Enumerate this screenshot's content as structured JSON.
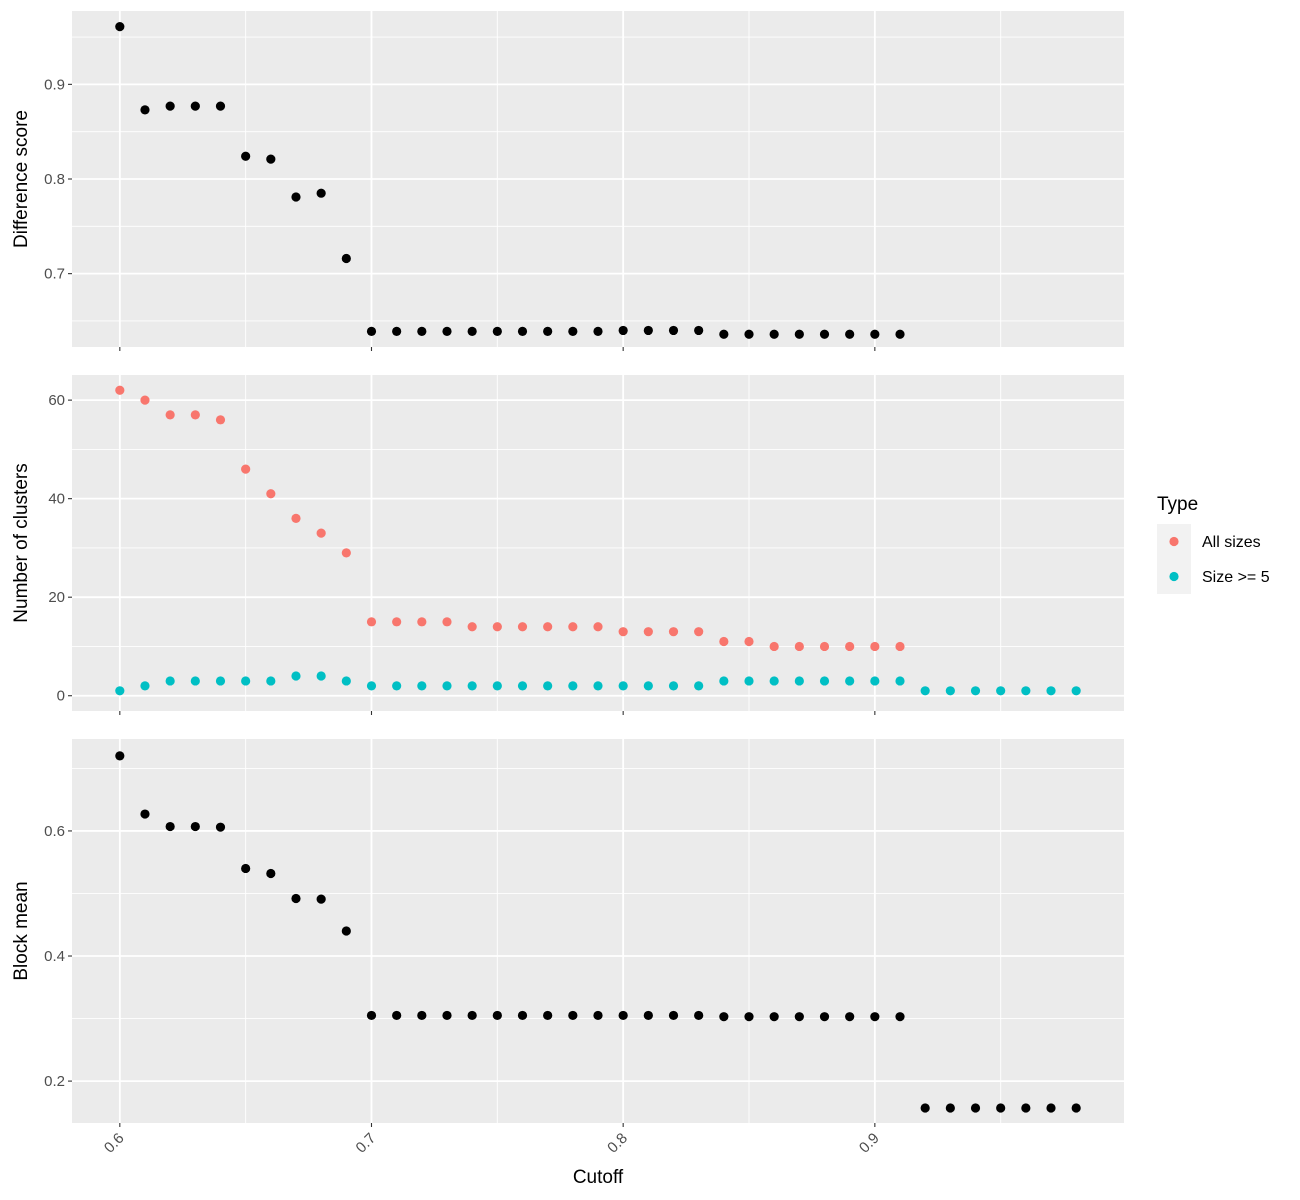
{
  "chart_data": {
    "type": "scatter",
    "xlabel": "Cutoff",
    "x_ticks": [
      "0.6",
      "0.7",
      "0.8",
      "0.9"
    ],
    "x_tick_values": [
      0.6,
      0.7,
      0.8,
      0.9
    ],
    "xlim": [
      0.581,
      0.999
    ],
    "grid": true,
    "legend": {
      "title": "Type",
      "position": "right",
      "entries": [
        {
          "label": "All sizes",
          "color": "#F8766D"
        },
        {
          "label": "Size >= 5",
          "color": "#00BFC4"
        }
      ]
    },
    "panels": [
      {
        "ylabel": "Difference score",
        "ylim": [
          0.6225,
          0.9775
        ],
        "y_ticks": [
          "0.7",
          "0.8",
          "0.9"
        ],
        "y_tick_values": [
          0.7,
          0.8,
          0.9
        ],
        "series": [
          {
            "color": "#000000",
            "x": [
              0.6,
              0.61,
              0.62,
              0.63,
              0.64,
              0.65,
              0.66,
              0.67,
              0.68,
              0.69,
              0.7,
              0.71,
              0.72,
              0.73,
              0.74,
              0.75,
              0.76,
              0.77,
              0.78,
              0.79,
              0.8,
              0.81,
              0.82,
              0.83,
              0.84,
              0.85,
              0.86,
              0.87,
              0.88,
              0.89,
              0.9,
              0.91
            ],
            "y": [
              0.961,
              0.873,
              0.877,
              0.877,
              0.877,
              0.824,
              0.821,
              0.781,
              0.785,
              0.716,
              0.639,
              0.639,
              0.639,
              0.639,
              0.639,
              0.639,
              0.639,
              0.639,
              0.639,
              0.639,
              0.64,
              0.64,
              0.64,
              0.64,
              0.636,
              0.636,
              0.636,
              0.636,
              0.636,
              0.636,
              0.636,
              0.636
            ]
          }
        ]
      },
      {
        "ylabel": "Number of clusters",
        "ylim": [
          -3.1,
          65.1
        ],
        "y_ticks": [
          "0",
          "20",
          "40",
          "60"
        ],
        "y_tick_values": [
          0,
          20,
          40,
          60
        ],
        "series": [
          {
            "name": "All sizes",
            "color": "#F8766D",
            "x": [
              0.6,
              0.61,
              0.62,
              0.63,
              0.64,
              0.65,
              0.66,
              0.67,
              0.68,
              0.69,
              0.7,
              0.71,
              0.72,
              0.73,
              0.74,
              0.75,
              0.76,
              0.77,
              0.78,
              0.79,
              0.8,
              0.81,
              0.82,
              0.83,
              0.84,
              0.85,
              0.86,
              0.87,
              0.88,
              0.89,
              0.9,
              0.91
            ],
            "y": [
              62,
              60,
              57,
              57,
              56,
              46,
              41,
              36,
              33,
              29,
              15,
              15,
              15,
              15,
              14,
              14,
              14,
              14,
              14,
              14,
              13,
              13,
              13,
              13,
              11,
              11,
              10,
              10,
              10,
              10,
              10,
              10
            ]
          },
          {
            "name": "Size >= 5",
            "color": "#00BFC4",
            "x": [
              0.6,
              0.61,
              0.62,
              0.63,
              0.64,
              0.65,
              0.66,
              0.67,
              0.68,
              0.69,
              0.7,
              0.71,
              0.72,
              0.73,
              0.74,
              0.75,
              0.76,
              0.77,
              0.78,
              0.79,
              0.8,
              0.81,
              0.82,
              0.83,
              0.84,
              0.85,
              0.86,
              0.87,
              0.88,
              0.89,
              0.9,
              0.91,
              0.92,
              0.93,
              0.94,
              0.95,
              0.96,
              0.97,
              0.98
            ],
            "y": [
              1,
              2,
              3,
              3,
              3,
              3,
              3,
              4,
              4,
              3,
              2,
              2,
              2,
              2,
              2,
              2,
              2,
              2,
              2,
              2,
              2,
              2,
              2,
              2,
              3,
              3,
              3,
              3,
              3,
              3,
              3,
              3,
              1,
              1,
              1,
              1,
              1,
              1,
              1
            ]
          }
        ]
      },
      {
        "ylabel": "Block mean",
        "ylim": [
          0.133,
          0.747
        ],
        "y_ticks": [
          "0.2",
          "0.4",
          "0.6"
        ],
        "y_tick_values": [
          0.2,
          0.4,
          0.6
        ],
        "series": [
          {
            "color": "#000000",
            "x": [
              0.6,
              0.61,
              0.62,
              0.63,
              0.64,
              0.65,
              0.66,
              0.67,
              0.68,
              0.69,
              0.7,
              0.71,
              0.72,
              0.73,
              0.74,
              0.75,
              0.76,
              0.77,
              0.78,
              0.79,
              0.8,
              0.81,
              0.82,
              0.83,
              0.84,
              0.85,
              0.86,
              0.87,
              0.88,
              0.89,
              0.9,
              0.91,
              0.92,
              0.93,
              0.94,
              0.95,
              0.96,
              0.97,
              0.98
            ],
            "y": [
              0.72,
              0.627,
              0.607,
              0.607,
              0.606,
              0.54,
              0.532,
              0.492,
              0.491,
              0.44,
              0.305,
              0.305,
              0.305,
              0.305,
              0.305,
              0.305,
              0.305,
              0.305,
              0.305,
              0.305,
              0.305,
              0.305,
              0.305,
              0.305,
              0.303,
              0.303,
              0.303,
              0.303,
              0.303,
              0.303,
              0.303,
              0.303,
              0.157,
              0.157,
              0.157,
              0.157,
              0.157,
              0.157,
              0.157
            ]
          }
        ]
      }
    ]
  }
}
